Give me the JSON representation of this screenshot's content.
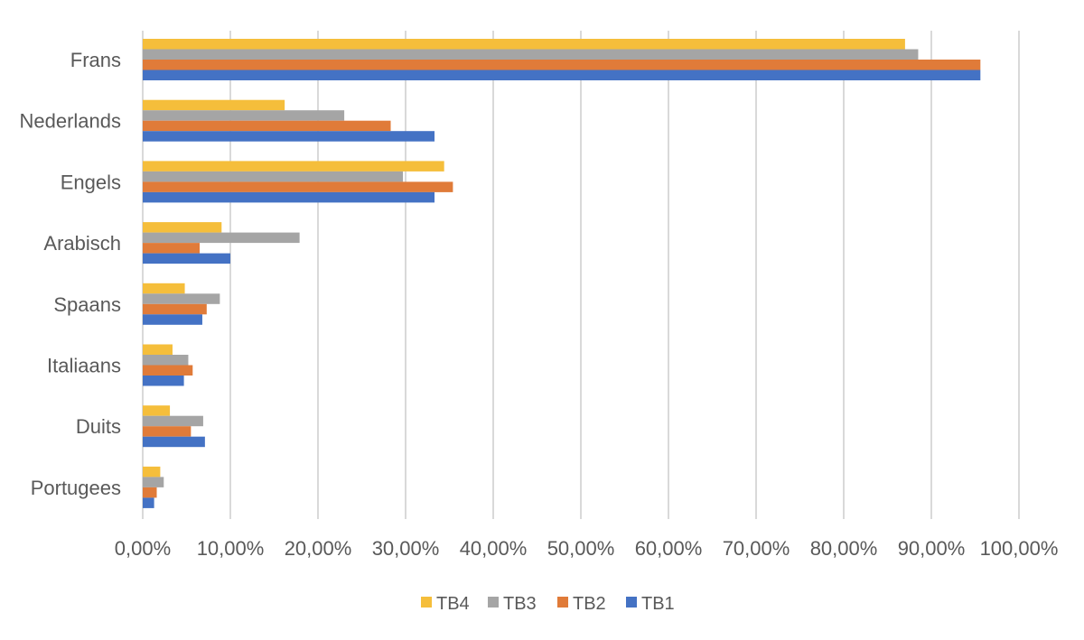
{
  "chart_data": {
    "type": "bar",
    "orientation": "horizontal",
    "categories": [
      "Frans",
      "Nederlands",
      "Engels",
      "Arabisch",
      "Spaans",
      "Italiaans",
      "Duits",
      "Portugees"
    ],
    "series": [
      {
        "name": "TB4",
        "color": "#F5BE3B",
        "values": [
          0.87,
          0.162,
          0.344,
          0.09,
          0.048,
          0.034,
          0.031,
          0.02
        ]
      },
      {
        "name": "TB3",
        "color": "#A5A5A5",
        "values": [
          0.885,
          0.23,
          0.297,
          0.179,
          0.088,
          0.052,
          0.069,
          0.024
        ]
      },
      {
        "name": "TB2",
        "color": "#E07B39",
        "values": [
          0.956,
          0.283,
          0.354,
          0.065,
          0.073,
          0.057,
          0.055,
          0.016
        ]
      },
      {
        "name": "TB1",
        "color": "#4472C4",
        "values": [
          0.956,
          0.333,
          0.333,
          0.1,
          0.068,
          0.047,
          0.071,
          0.013
        ]
      }
    ],
    "xlim": [
      0,
      1
    ],
    "xticks": [
      "0,00%",
      "10,00%",
      "20,00%",
      "30,00%",
      "40,00%",
      "50,00%",
      "60,00%",
      "70,00%",
      "80,00%",
      "90,00%",
      "100,00%"
    ],
    "grid": true,
    "legend_position": "bottom",
    "legend_order": [
      "TB4",
      "TB3",
      "TB2",
      "TB1"
    ],
    "gridline_color": "#D9D9D9",
    "text_color": "#595959"
  }
}
